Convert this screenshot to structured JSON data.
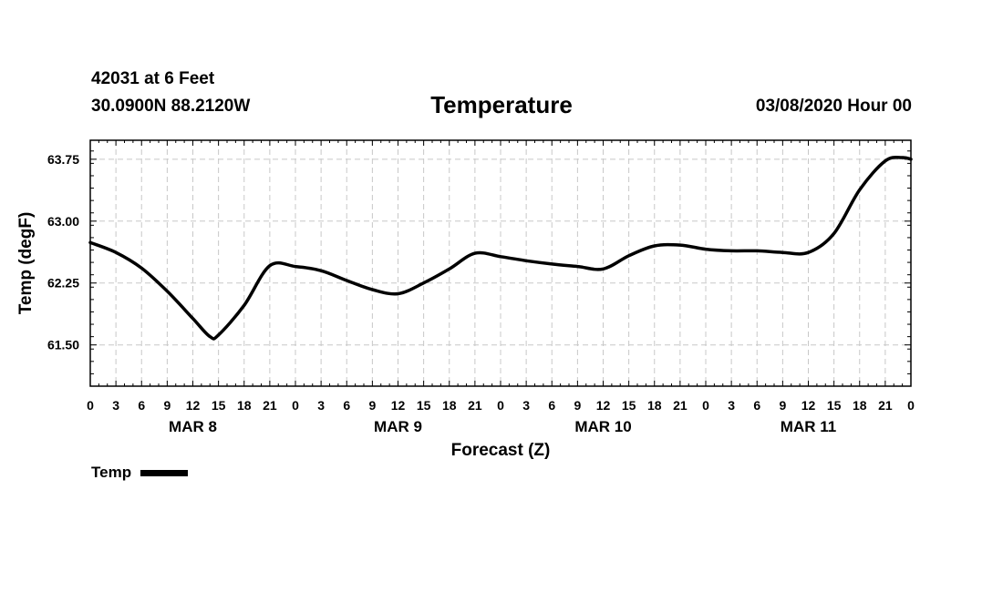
{
  "header": {
    "station": "42031 at 6 Feet",
    "coords": "30.0900N 88.2120W",
    "title": "Temperature",
    "datetime": "03/08/2020 Hour 00"
  },
  "chart_data": {
    "type": "line",
    "title": "Temperature",
    "xlabel": "Forecast (Z)",
    "ylabel": "Temp (degF)",
    "xlim": [
      0,
      96
    ],
    "ylim": [
      61.0,
      63.98
    ],
    "grid": true,
    "yticks": [
      61.5,
      62.25,
      63.0,
      63.75
    ],
    "ytick_labels": [
      "61.50",
      "62.25",
      "63.00",
      "63.75"
    ],
    "xticks": [
      0,
      3,
      6,
      9,
      12,
      15,
      18,
      21,
      24,
      27,
      30,
      33,
      36,
      39,
      42,
      45,
      48,
      51,
      54,
      57,
      60,
      63,
      66,
      69,
      72,
      75,
      78,
      81,
      84,
      87,
      90,
      93,
      96
    ],
    "xtick_labels": [
      "0",
      "3",
      "6",
      "9",
      "12",
      "15",
      "18",
      "21",
      "0",
      "3",
      "6",
      "9",
      "12",
      "15",
      "18",
      "21",
      "0",
      "3",
      "6",
      "9",
      "12",
      "15",
      "18",
      "21",
      "0",
      "3",
      "6",
      "9",
      "12",
      "15",
      "18",
      "21",
      "0"
    ],
    "day_labels": [
      {
        "label": "MAR 8",
        "hour": 12
      },
      {
        "label": "MAR 9",
        "hour": 36
      },
      {
        "label": "MAR 10",
        "hour": 60
      },
      {
        "label": "MAR 11",
        "hour": 84
      }
    ],
    "legend_position": "bottom-left",
    "series": [
      {
        "name": "Temp",
        "color": "#000000",
        "x": [
          0,
          3,
          6,
          9,
          12,
          14,
          15,
          18,
          21,
          24,
          27,
          30,
          33,
          36,
          39,
          42,
          45,
          48,
          51,
          54,
          57,
          60,
          63,
          66,
          69,
          72,
          75,
          78,
          81,
          84,
          87,
          90,
          93,
          95,
          96
        ],
        "y": [
          62.74,
          62.62,
          62.43,
          62.15,
          61.82,
          61.6,
          61.62,
          61.98,
          62.46,
          62.45,
          62.4,
          62.28,
          62.17,
          62.12,
          62.25,
          62.42,
          62.61,
          62.57,
          62.52,
          62.48,
          62.45,
          62.42,
          62.58,
          62.7,
          62.71,
          62.66,
          62.64,
          62.64,
          62.62,
          62.62,
          62.85,
          63.38,
          63.73,
          63.77,
          63.75
        ]
      }
    ]
  },
  "legend": {
    "label": "Temp"
  }
}
